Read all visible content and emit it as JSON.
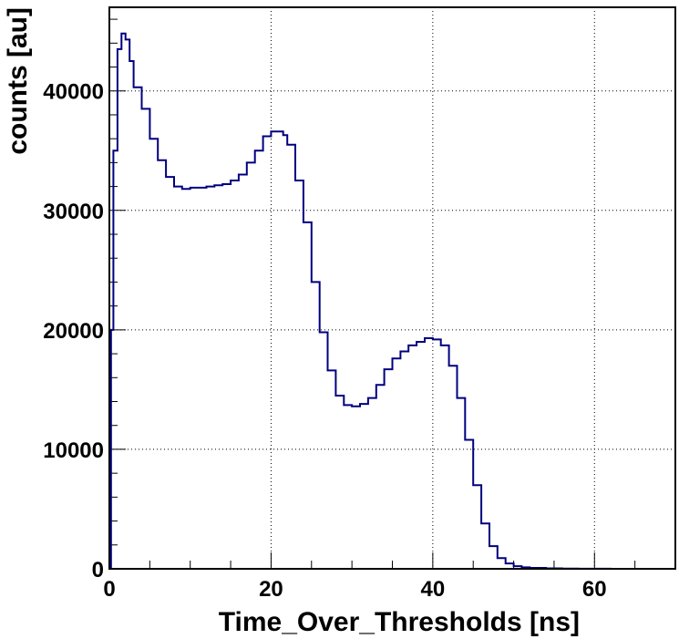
{
  "chart_data": {
    "type": "line",
    "style": "step-histogram",
    "title": "",
    "xlabel": "Time_Over_Thresholds [ns]",
    "ylabel": "counts [au]",
    "xlim": [
      0,
      70
    ],
    "ylim": [
      0,
      47000
    ],
    "xticks": [
      0,
      20,
      40,
      60
    ],
    "yticks": [
      0,
      10000,
      20000,
      30000,
      40000
    ],
    "grid": true,
    "line_color": "#00007f",
    "series": [
      {
        "x": [
          0,
          0.2,
          0.5,
          1.0,
          1.5,
          2.0,
          2.5,
          3.0,
          4.0,
          5.0,
          6.0,
          7.0,
          8.0,
          9.0,
          10.0,
          11.0,
          12.0,
          13.0,
          14.0,
          15.0,
          16.0,
          17.0,
          18.0,
          19.0,
          20.0,
          21.0,
          21.5,
          22.0,
          23.0,
          24.0,
          25.0,
          26.0,
          27.0,
          28.0,
          29.0,
          30.0,
          31.0,
          32.0,
          33.0,
          34.0,
          35.0,
          36.0,
          37.0,
          38.0,
          39.0,
          40.0,
          41.0,
          42.0,
          43.0,
          44.0,
          45.0,
          46.0,
          47.0,
          48.0,
          49.0,
          50.0,
          51.0,
          52.0,
          54.0,
          56.0,
          58.0,
          60.0,
          62.0,
          65.0,
          70.0
        ],
        "y": [
          0,
          20000,
          35000,
          43500,
          44800,
          44300,
          42500,
          40300,
          38500,
          36000,
          34200,
          32800,
          32000,
          31800,
          31900,
          31900,
          32000,
          32100,
          32200,
          32500,
          33000,
          34000,
          35000,
          36200,
          36600,
          36600,
          36300,
          35500,
          32500,
          29000,
          24000,
          19800,
          16600,
          14500,
          13700,
          13600,
          13800,
          14300,
          15400,
          16700,
          17600,
          18200,
          18700,
          19000,
          19300,
          19200,
          18700,
          17000,
          14300,
          10800,
          7000,
          3800,
          1900,
          900,
          450,
          220,
          120,
          80,
          40,
          20,
          10,
          5,
          0,
          0,
          0
        ]
      }
    ]
  }
}
